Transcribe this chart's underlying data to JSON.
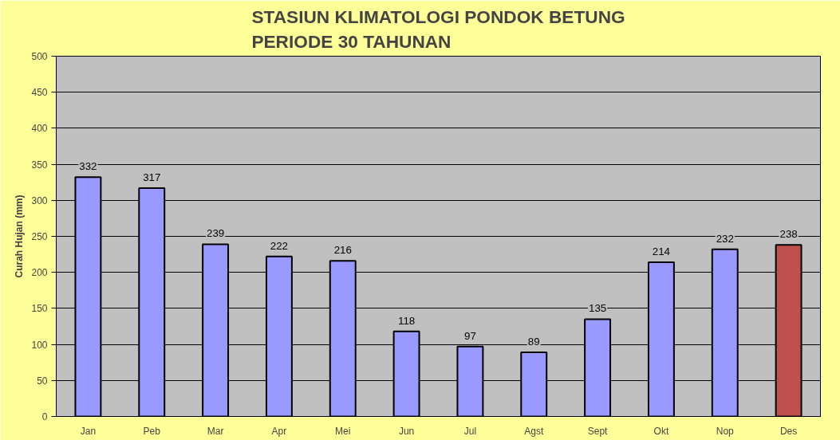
{
  "chart_data": {
    "type": "bar",
    "title": "STASIUN KLIMATOLOGI PONDOK BETUNG\nPERIODE 30 TAHUNAN",
    "ylabel": "Curah Hujan (mm)",
    "categories": [
      "Jan",
      "Peb",
      "Mar",
      "Apr",
      "Mei",
      "Jun",
      "Jul",
      "Agst",
      "Sept",
      "Okt",
      "Nop",
      "Des"
    ],
    "values": [
      332,
      317,
      239,
      222,
      216,
      118,
      97,
      89,
      135,
      214,
      232,
      238
    ],
    "colors": [
      "#9999ff",
      "#9999ff",
      "#9999ff",
      "#9999ff",
      "#9999ff",
      "#9999ff",
      "#9999ff",
      "#9999ff",
      "#9999ff",
      "#9999ff",
      "#9999ff",
      "#c0504d"
    ],
    "ylim": [
      0,
      500
    ],
    "yticks": [
      0,
      50,
      100,
      150,
      200,
      250,
      300,
      350,
      400,
      450,
      500
    ],
    "grid": "y",
    "data_labels": true
  }
}
